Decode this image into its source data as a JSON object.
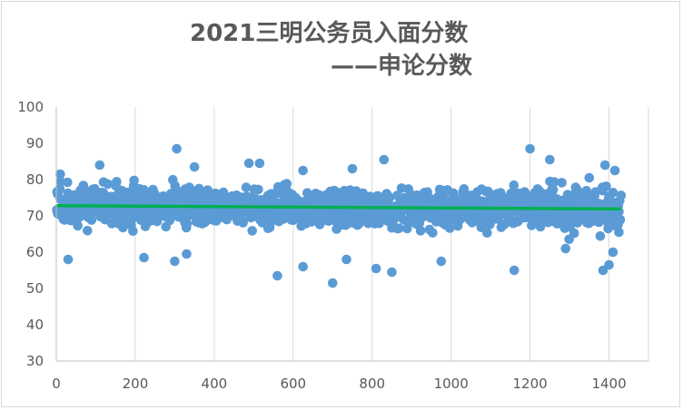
{
  "chart_data": {
    "type": "scatter",
    "title": "2021三明公务员入面分数",
    "subtitle": "——申论分数",
    "xlabel": "",
    "ylabel": "",
    "xlim": [
      0,
      1500
    ],
    "ylim": [
      30,
      100
    ],
    "x_ticks": [
      0,
      200,
      400,
      600,
      800,
      1000,
      1200,
      1400
    ],
    "y_ticks": [
      30,
      40,
      50,
      60,
      70,
      80,
      90,
      100
    ],
    "grid": "vertical",
    "legend": "none",
    "point_color": "#5b9bd5",
    "trendline_color": "#00b050",
    "n_points": 1430,
    "trendline": {
      "x": [
        0,
        1430
      ],
      "y": [
        72.8,
        71.9
      ]
    },
    "bulk_range": [
      62,
      80
    ],
    "outliers": [
      {
        "x": 10,
        "y": 81.5
      },
      {
        "x": 30,
        "y": 58
      },
      {
        "x": 110,
        "y": 84
      },
      {
        "x": 222,
        "y": 58.5
      },
      {
        "x": 305,
        "y": 88.5
      },
      {
        "x": 300,
        "y": 57.5
      },
      {
        "x": 330,
        "y": 59.5
      },
      {
        "x": 350,
        "y": 83.5
      },
      {
        "x": 488,
        "y": 84.5
      },
      {
        "x": 515,
        "y": 84.5
      },
      {
        "x": 560,
        "y": 53.5
      },
      {
        "x": 625,
        "y": 56
      },
      {
        "x": 625,
        "y": 82.5
      },
      {
        "x": 700,
        "y": 51.5
      },
      {
        "x": 735,
        "y": 58
      },
      {
        "x": 750,
        "y": 83
      },
      {
        "x": 810,
        "y": 55.5
      },
      {
        "x": 830,
        "y": 85.5
      },
      {
        "x": 850,
        "y": 54.5
      },
      {
        "x": 975,
        "y": 57.5
      },
      {
        "x": 1160,
        "y": 55
      },
      {
        "x": 1200,
        "y": 88.5
      },
      {
        "x": 1250,
        "y": 85.5
      },
      {
        "x": 1290,
        "y": 61
      },
      {
        "x": 1350,
        "y": 80.5
      },
      {
        "x": 1385,
        "y": 55
      },
      {
        "x": 1390,
        "y": 84
      },
      {
        "x": 1400,
        "y": 56.5
      },
      {
        "x": 1410,
        "y": 60
      },
      {
        "x": 1415,
        "y": 82.5
      },
      {
        "x": 1425,
        "y": 65.5
      }
    ]
  }
}
